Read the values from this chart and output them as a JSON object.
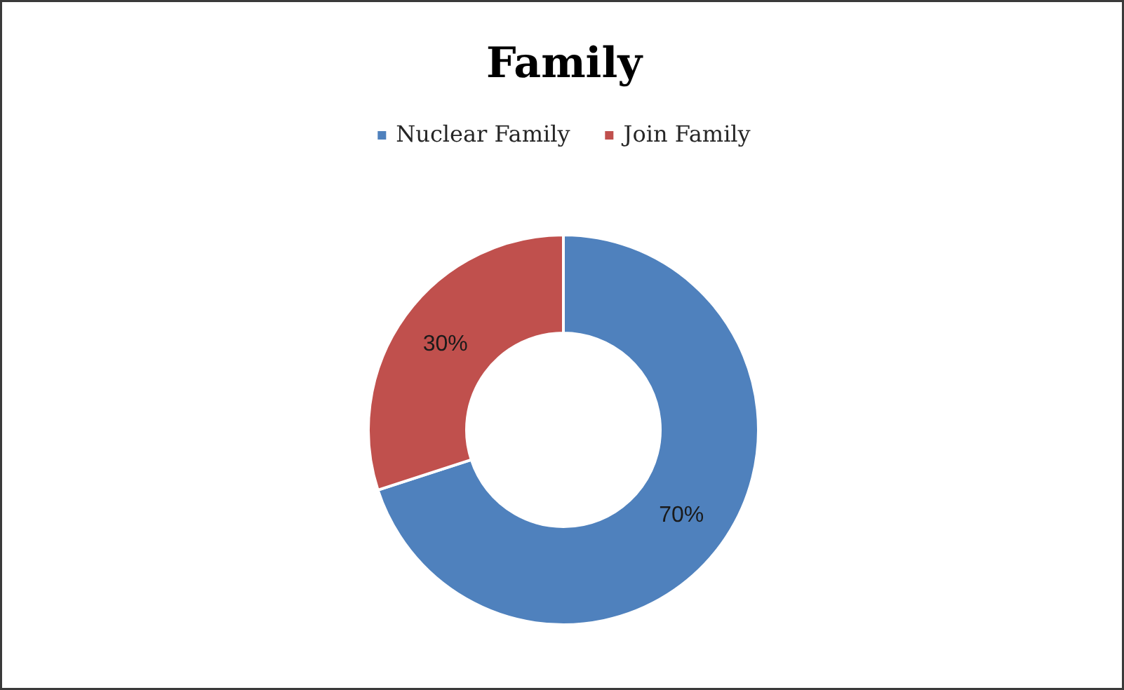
{
  "chart_data": {
    "type": "donut",
    "title": "Family",
    "categories": [
      "Nuclear Family",
      "Join Family"
    ],
    "values": [
      70,
      30
    ],
    "colors": [
      "#4f81bd",
      "#c0504d"
    ],
    "value_labels": [
      "70%",
      "30%"
    ],
    "legend": "top"
  }
}
